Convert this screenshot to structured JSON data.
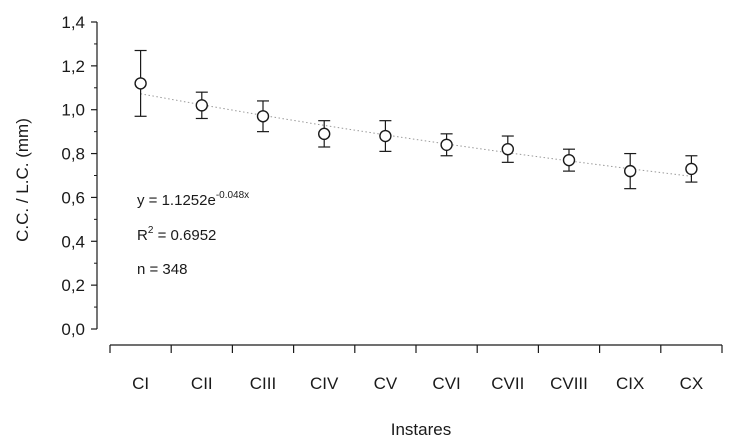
{
  "chart_data": {
    "type": "scatter",
    "xlabel": "Instares",
    "ylabel": "C.C. / L.C. (mm)",
    "categories": [
      "CI",
      "CII",
      "CIII",
      "CIV",
      "CV",
      "CVI",
      "CVII",
      "CVIII",
      "CIX",
      "CX"
    ],
    "y_ticks": [
      "0,0",
      "0,2",
      "0,4",
      "0,6",
      "0,8",
      "1,0",
      "1,2",
      "1,4"
    ],
    "ylim": [
      0,
      1.4
    ],
    "grid": false,
    "series": [
      {
        "values": [
          1.12,
          1.02,
          0.97,
          0.89,
          0.88,
          0.84,
          0.82,
          0.77,
          0.72,
          0.73
        ],
        "error_low": [
          0.97,
          0.96,
          0.9,
          0.83,
          0.81,
          0.79,
          0.76,
          0.72,
          0.64,
          0.67
        ],
        "error_high": [
          1.27,
          1.08,
          1.04,
          0.95,
          0.95,
          0.89,
          0.88,
          0.82,
          0.8,
          0.79
        ]
      }
    ],
    "trendline": {
      "type": "exponential",
      "a": 1.1252,
      "b": -0.048,
      "style": "dotted"
    },
    "annotations": {
      "equation_prefix": "y = 1.1252e",
      "equation_exponent": "-0.048x",
      "r2_prefix": "R",
      "r2_exponent": "2",
      "r2_value": " = 0.6952",
      "n_text": "n = 348"
    }
  }
}
